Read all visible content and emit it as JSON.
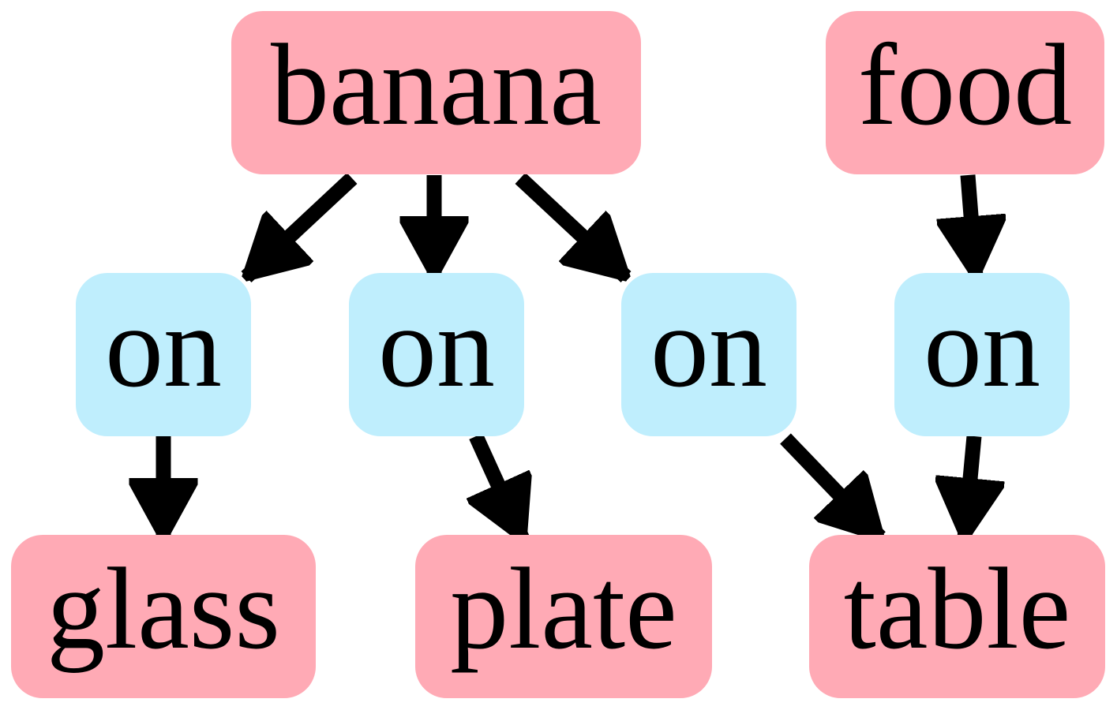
{
  "colors": {
    "object_node": "#ffaab5",
    "relation_node": "#bfeefd",
    "edge": "#000000",
    "text": "#000000"
  },
  "nodes": {
    "banana": {
      "label": "banana",
      "kind": "object"
    },
    "food": {
      "label": "food",
      "kind": "object"
    },
    "on1": {
      "label": "on",
      "kind": "relation"
    },
    "on2": {
      "label": "on",
      "kind": "relation"
    },
    "on3": {
      "label": "on",
      "kind": "relation"
    },
    "on4": {
      "label": "on",
      "kind": "relation"
    },
    "glass": {
      "label": "glass",
      "kind": "object"
    },
    "plate": {
      "label": "plate",
      "kind": "object"
    },
    "table": {
      "label": "table",
      "kind": "object"
    }
  },
  "edges": [
    {
      "from": "banana",
      "to": "on1"
    },
    {
      "from": "banana",
      "to": "on2"
    },
    {
      "from": "banana",
      "to": "on3"
    },
    {
      "from": "food",
      "to": "on4"
    },
    {
      "from": "on1",
      "to": "glass"
    },
    {
      "from": "on2",
      "to": "plate"
    },
    {
      "from": "on3",
      "to": "table"
    },
    {
      "from": "on4",
      "to": "table"
    }
  ]
}
